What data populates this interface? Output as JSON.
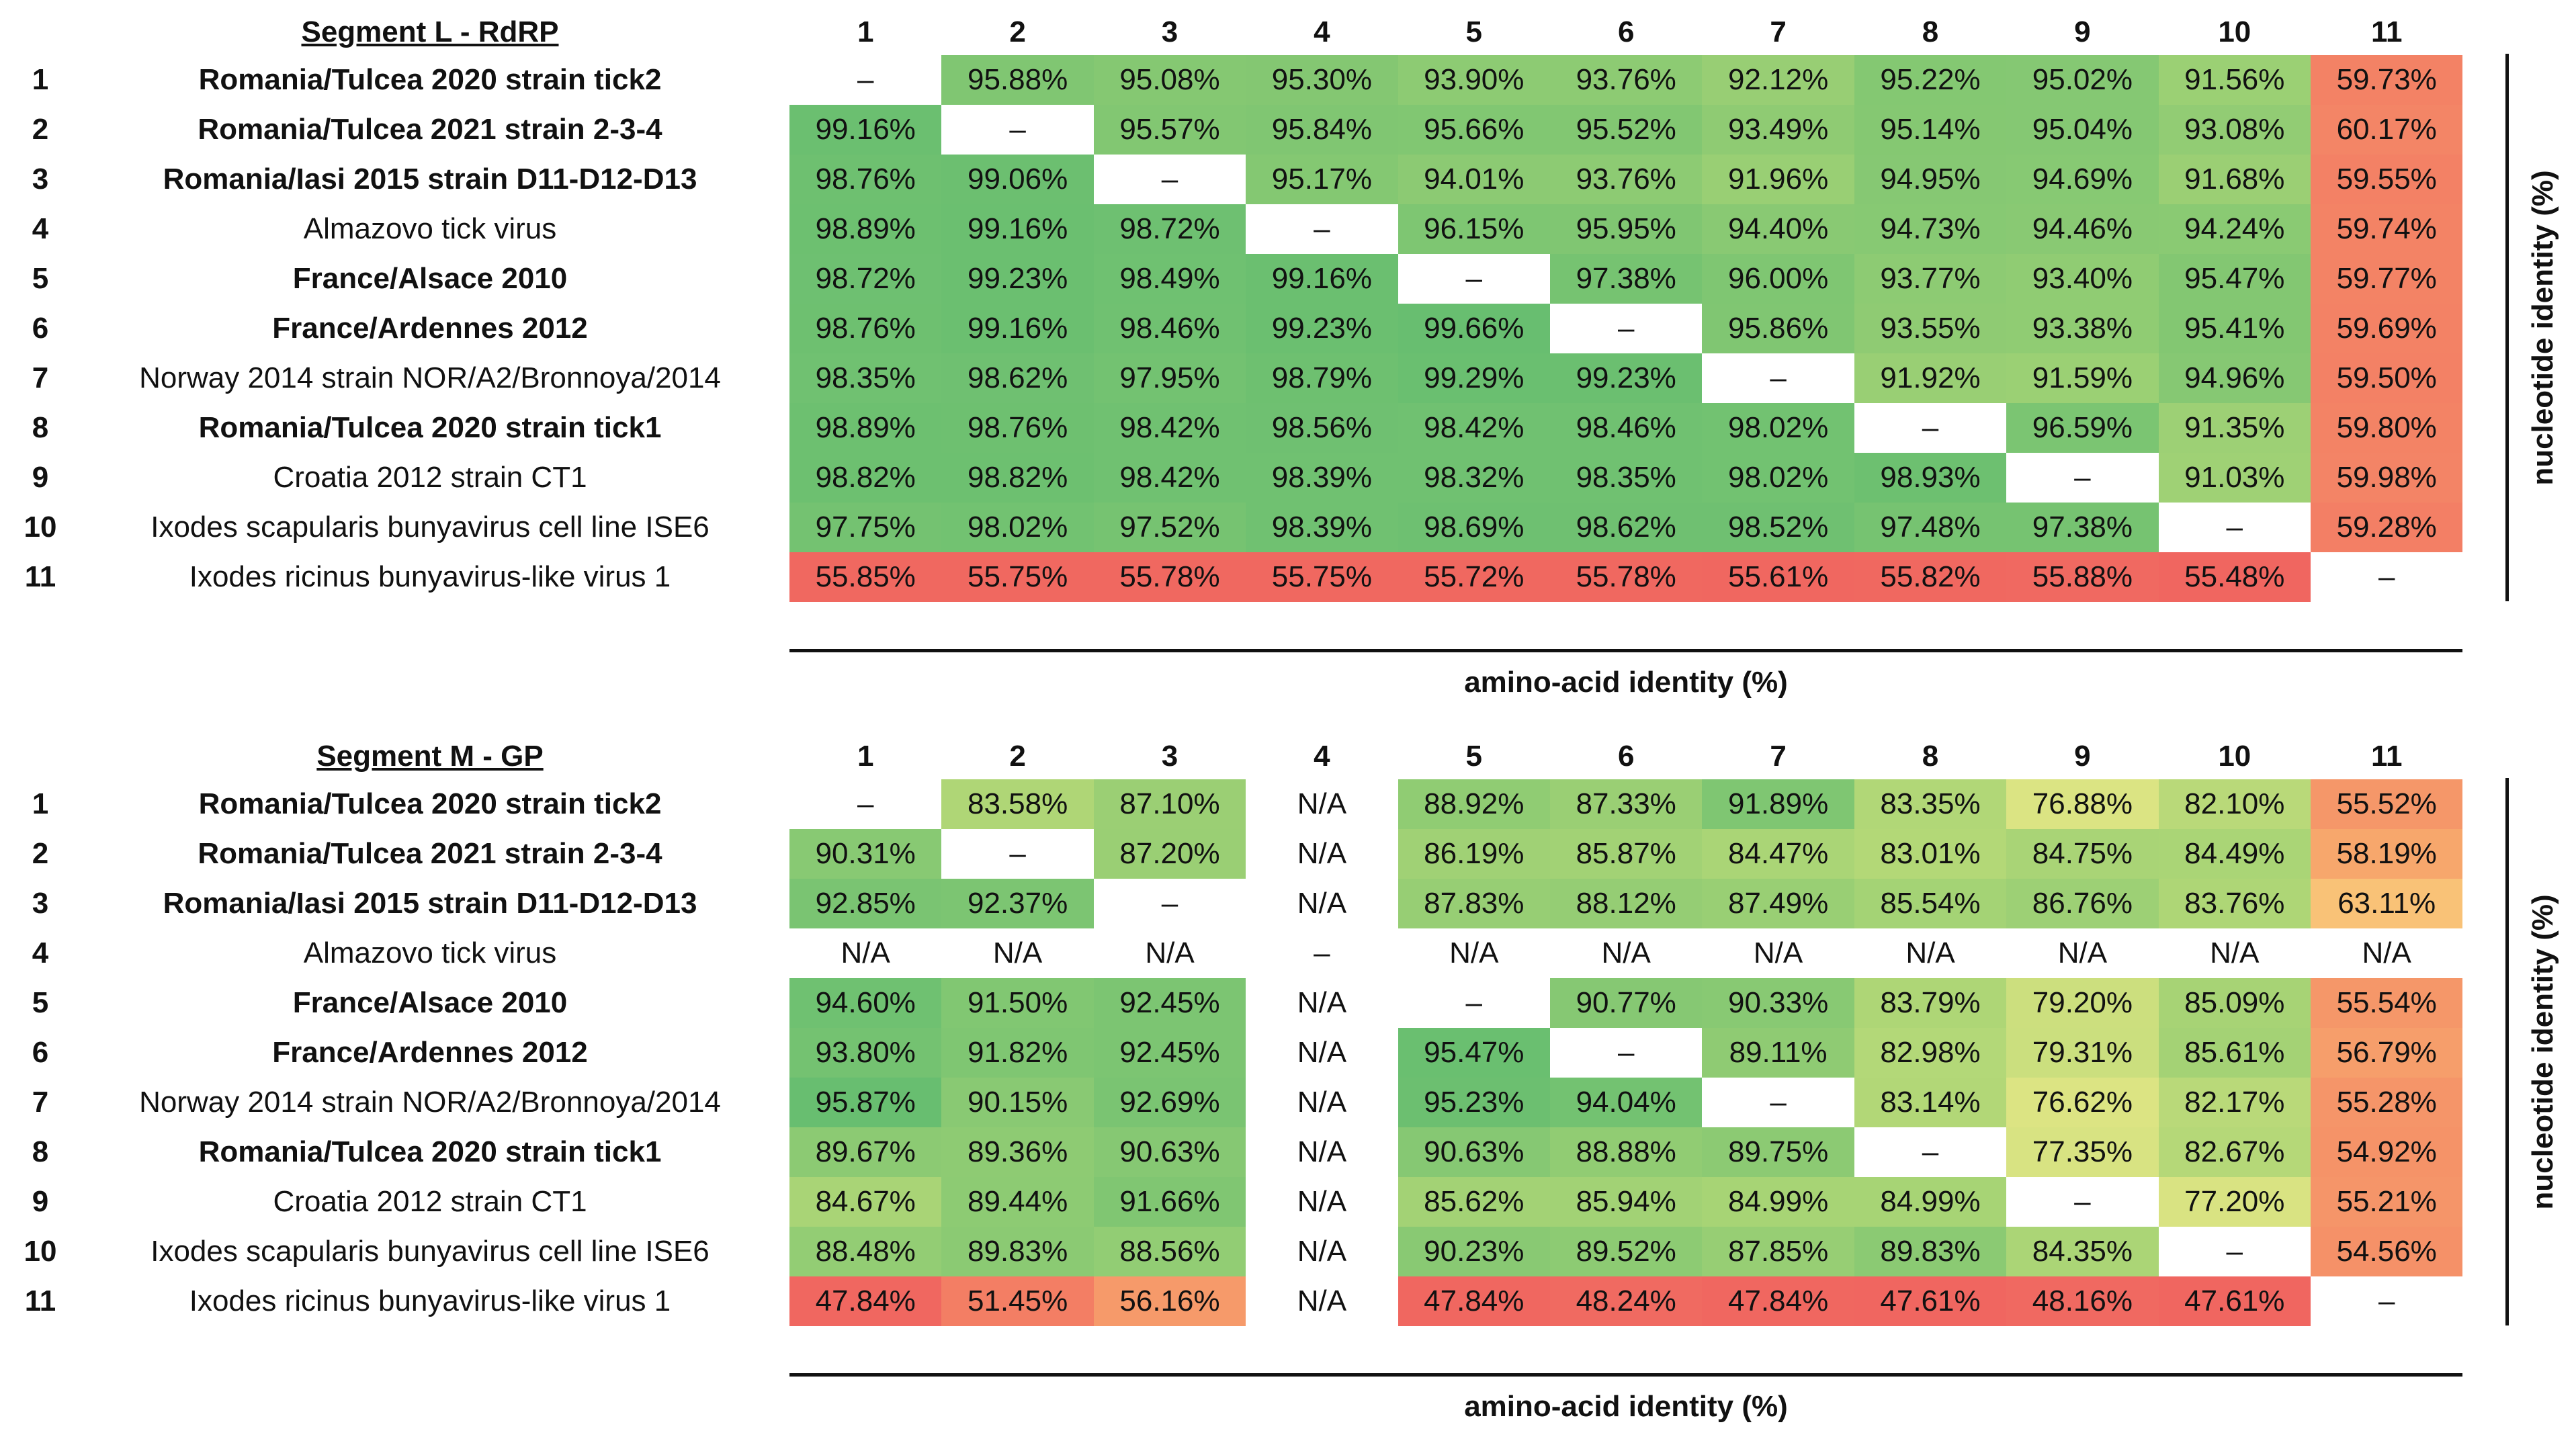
{
  "chart_data": [
    {
      "type": "heatmap",
      "title": "Segment L - RdRP",
      "xlabel": "amino-acid identity (%)",
      "ylabel": "nucleotide identity (%)",
      "column_labels": [
        "1",
        "2",
        "3",
        "4",
        "5",
        "6",
        "7",
        "8",
        "9",
        "10",
        "11"
      ],
      "row_labels": [
        {
          "num": "1",
          "name": "Romania/Tulcea 2020 strain tick2",
          "bold": true
        },
        {
          "num": "2",
          "name": "Romania/Tulcea 2021 strain 2-3-4",
          "bold": true
        },
        {
          "num": "3",
          "name": "Romania/Iasi 2015 strain D11-D12-D13",
          "bold": true
        },
        {
          "num": "4",
          "name": "Almazovo tick virus",
          "bold": false
        },
        {
          "num": "5",
          "name": "France/Alsace 2010",
          "bold": true
        },
        {
          "num": "6",
          "name": "France/Ardennes 2012",
          "bold": true
        },
        {
          "num": "7",
          "name": "Norway 2014 strain NOR/A2/Bronnoya/2014",
          "bold": false
        },
        {
          "num": "8",
          "name": "Romania/Tulcea 2020 strain tick1",
          "bold": true
        },
        {
          "num": "9",
          "name": "Croatia 2012 strain CT1",
          "bold": false
        },
        {
          "num": "10",
          "name": "Ixodes scapularis bunyavirus cell line ISE6",
          "bold": false
        },
        {
          "num": "11",
          "name": "Ixodes ricinus bunyavirus-like virus 1",
          "bold": false
        }
      ],
      "matrix": [
        [
          "–",
          "95.88%",
          "95.08%",
          "95.30%",
          "93.90%",
          "93.76%",
          "92.12%",
          "95.22%",
          "95.02%",
          "91.56%",
          "59.73%"
        ],
        [
          "99.16%",
          "–",
          "95.57%",
          "95.84%",
          "95.66%",
          "95.52%",
          "93.49%",
          "95.14%",
          "95.04%",
          "93.08%",
          "60.17%"
        ],
        [
          "98.76%",
          "99.06%",
          "–",
          "95.17%",
          "94.01%",
          "93.76%",
          "91.96%",
          "94.95%",
          "94.69%",
          "91.68%",
          "59.55%"
        ],
        [
          "98.89%",
          "99.16%",
          "98.72%",
          "–",
          "96.15%",
          "95.95%",
          "94.40%",
          "94.73%",
          "94.46%",
          "94.24%",
          "59.74%"
        ],
        [
          "98.72%",
          "99.23%",
          "98.49%",
          "99.16%",
          "–",
          "97.38%",
          "96.00%",
          "93.77%",
          "93.40%",
          "95.47%",
          "59.77%"
        ],
        [
          "98.76%",
          "99.16%",
          "98.46%",
          "99.23%",
          "99.66%",
          "–",
          "95.86%",
          "93.55%",
          "93.38%",
          "95.41%",
          "59.69%"
        ],
        [
          "98.35%",
          "98.62%",
          "97.95%",
          "98.79%",
          "99.29%",
          "99.23%",
          "–",
          "91.92%",
          "91.59%",
          "94.96%",
          "59.50%"
        ],
        [
          "98.89%",
          "98.76%",
          "98.42%",
          "98.56%",
          "98.42%",
          "98.46%",
          "98.02%",
          "–",
          "96.59%",
          "91.35%",
          "59.80%"
        ],
        [
          "98.82%",
          "98.82%",
          "98.42%",
          "98.39%",
          "98.32%",
          "98.35%",
          "98.02%",
          "98.93%",
          "–",
          "91.03%",
          "59.98%"
        ],
        [
          "97.75%",
          "98.02%",
          "97.52%",
          "98.39%",
          "98.69%",
          "98.62%",
          "98.52%",
          "97.48%",
          "97.38%",
          "–",
          "59.28%"
        ],
        [
          "55.85%",
          "55.75%",
          "55.78%",
          "55.75%",
          "55.72%",
          "55.78%",
          "55.61%",
          "55.82%",
          "55.88%",
          "55.48%",
          "–"
        ]
      ]
    },
    {
      "type": "heatmap",
      "title": "Segment M - GP",
      "xlabel": "amino-acid identity (%)",
      "ylabel": "nucleotide identity (%)",
      "column_labels": [
        "1",
        "2",
        "3",
        "4",
        "5",
        "6",
        "7",
        "8",
        "9",
        "10",
        "11"
      ],
      "row_labels": [
        {
          "num": "1",
          "name": "Romania/Tulcea 2020 strain tick2",
          "bold": true
        },
        {
          "num": "2",
          "name": "Romania/Tulcea 2021 strain 2-3-4",
          "bold": true
        },
        {
          "num": "3",
          "name": "Romania/Iasi 2015 strain D11-D12-D13",
          "bold": true
        },
        {
          "num": "4",
          "name": "Almazovo tick virus",
          "bold": false
        },
        {
          "num": "5",
          "name": "France/Alsace 2010",
          "bold": true
        },
        {
          "num": "6",
          "name": "France/Ardennes 2012",
          "bold": true
        },
        {
          "num": "7",
          "name": "Norway 2014 strain NOR/A2/Bronnoya/2014",
          "bold": false
        },
        {
          "num": "8",
          "name": "Romania/Tulcea 2020 strain tick1",
          "bold": true
        },
        {
          "num": "9",
          "name": "Croatia 2012 strain CT1",
          "bold": false
        },
        {
          "num": "10",
          "name": "Ixodes scapularis bunyavirus cell line ISE6",
          "bold": false
        },
        {
          "num": "11",
          "name": "Ixodes ricinus bunyavirus-like virus 1",
          "bold": false
        }
      ],
      "matrix": [
        [
          "–",
          "83.58%",
          "87.10%",
          "N/A",
          "88.92%",
          "87.33%",
          "91.89%",
          "83.35%",
          "76.88%",
          "82.10%",
          "55.52%"
        ],
        [
          "90.31%",
          "–",
          "87.20%",
          "N/A",
          "86.19%",
          "85.87%",
          "84.47%",
          "83.01%",
          "84.75%",
          "84.49%",
          "58.19%"
        ],
        [
          "92.85%",
          "92.37%",
          "–",
          "N/A",
          "87.83%",
          "88.12%",
          "87.49%",
          "85.54%",
          "86.76%",
          "83.76%",
          "63.11%"
        ],
        [
          "N/A",
          "N/A",
          "N/A",
          "–",
          "N/A",
          "N/A",
          "N/A",
          "N/A",
          "N/A",
          "N/A",
          "N/A"
        ],
        [
          "94.60%",
          "91.50%",
          "92.45%",
          "N/A",
          "–",
          "90.77%",
          "90.33%",
          "83.79%",
          "79.20%",
          "85.09%",
          "55.54%"
        ],
        [
          "93.80%",
          "91.82%",
          "92.45%",
          "N/A",
          "95.47%",
          "–",
          "89.11%",
          "82.98%",
          "79.31%",
          "85.61%",
          "56.79%"
        ],
        [
          "95.87%",
          "90.15%",
          "92.69%",
          "N/A",
          "95.23%",
          "94.04%",
          "–",
          "83.14%",
          "76.62%",
          "82.17%",
          "55.28%"
        ],
        [
          "89.67%",
          "89.36%",
          "90.63%",
          "N/A",
          "90.63%",
          "88.88%",
          "89.75%",
          "–",
          "77.35%",
          "82.67%",
          "54.92%"
        ],
        [
          "84.67%",
          "89.44%",
          "91.66%",
          "N/A",
          "85.62%",
          "85.94%",
          "84.99%",
          "84.99%",
          "–",
          "77.20%",
          "55.21%"
        ],
        [
          "88.48%",
          "89.83%",
          "88.56%",
          "N/A",
          "90.23%",
          "89.52%",
          "87.85%",
          "89.83%",
          "84.35%",
          "–",
          "54.56%"
        ],
        [
          "47.84%",
          "51.45%",
          "56.16%",
          "N/A",
          "47.84%",
          "48.24%",
          "47.84%",
          "47.61%",
          "48.16%",
          "47.61%",
          "–"
        ]
      ]
    }
  ]
}
